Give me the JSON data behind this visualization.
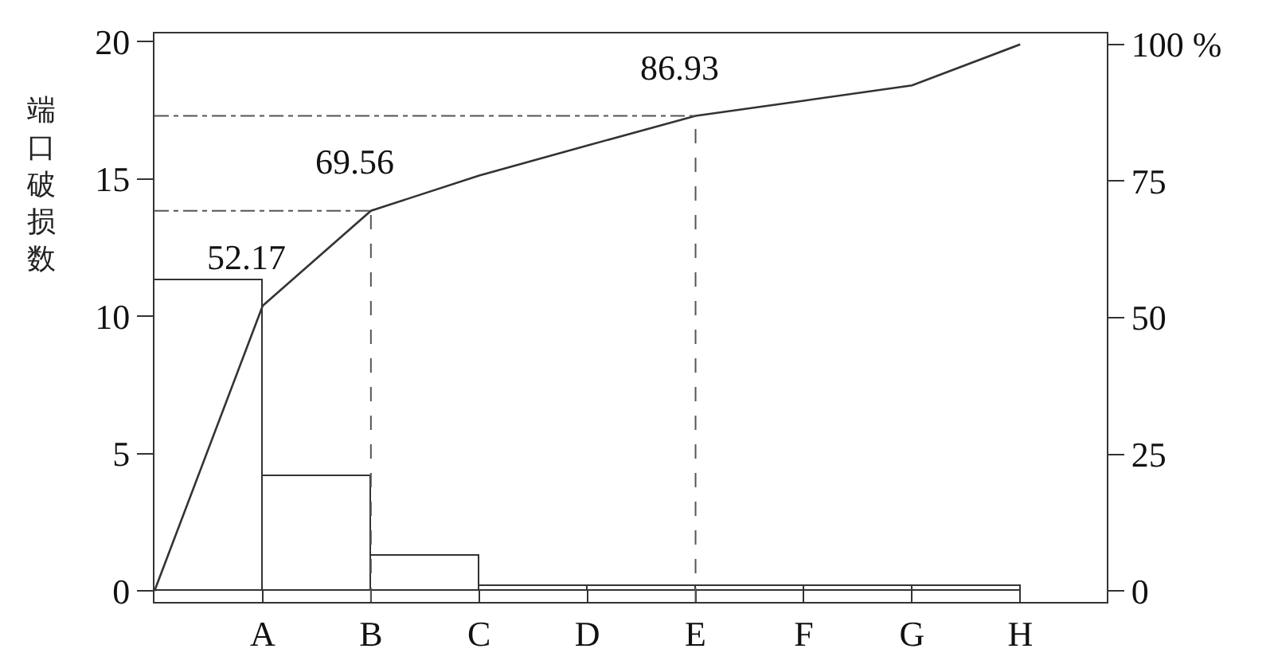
{
  "chart_data": {
    "type": "bar",
    "ylabel": "端口破损数",
    "categories": [
      null,
      "A",
      "B",
      "C",
      "D",
      "E",
      "F",
      "G",
      "H"
    ],
    "ylim": [
      -0.4,
      20.3
    ],
    "yticks": [
      0,
      5,
      10,
      15,
      20
    ],
    "y2lim": [
      -2,
      102
    ],
    "y2ticks": [
      0,
      25,
      50,
      75,
      {
        "value": 100,
        "label": "100 %"
      }
    ],
    "series": [
      {
        "color": "#ffffff",
        "values": [
          null,
          11.3,
          4.2,
          1.3,
          0.2,
          0.2,
          0.2,
          0.2,
          0.2
        ]
      },
      {
        "type": "line",
        "axis": "y2",
        "color": "#333333",
        "values": [
          0,
          52.17,
          69.56,
          76,
          81.5,
          86.93,
          89.7,
          92.5,
          100
        ],
        "value_labels": [
          null,
          "52.17",
          "69.56",
          null,
          null,
          "86.93",
          null,
          null,
          null
        ]
      }
    ],
    "ref_lines": [
      {
        "axis": "y2",
        "value": 69.56,
        "line_style": "dashdot",
        "color": "#555555"
      },
      {
        "axis": "y2",
        "value": 86.93,
        "line_style": "dashdot",
        "color": "#555555"
      },
      {
        "axis": "x",
        "value": "B",
        "line_style": "dashed",
        "color": "#555555"
      },
      {
        "axis": "x",
        "value": "E",
        "line_style": "dashed",
        "color": "#555555"
      }
    ]
  }
}
